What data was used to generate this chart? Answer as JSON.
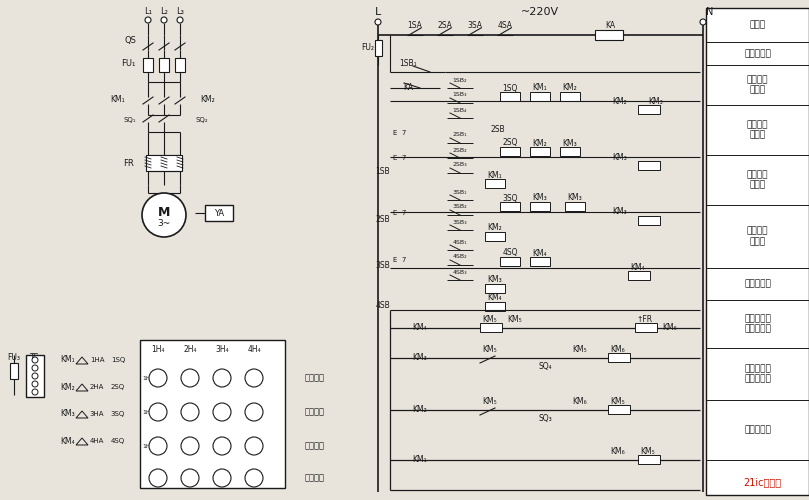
{
  "bg_color": "#e8e4dc",
  "line_color": "#1a1a1a",
  "watermark": "21ic电学网",
  "right_labels": [
    "熔断器",
    "电压继电器",
    "一层控制\n接触器",
    "二层控制\n接触器",
    "三层控制\n接触器",
    "四层控制\n接触器",
    "上升接触器",
    "三层判别上\n下方向开关",
    "二层判别上\n下方向开关",
    "下降接触器"
  ],
  "signal_labels": [
    "四层信号",
    "三层信号",
    "二层信号",
    "一层信号"
  ]
}
